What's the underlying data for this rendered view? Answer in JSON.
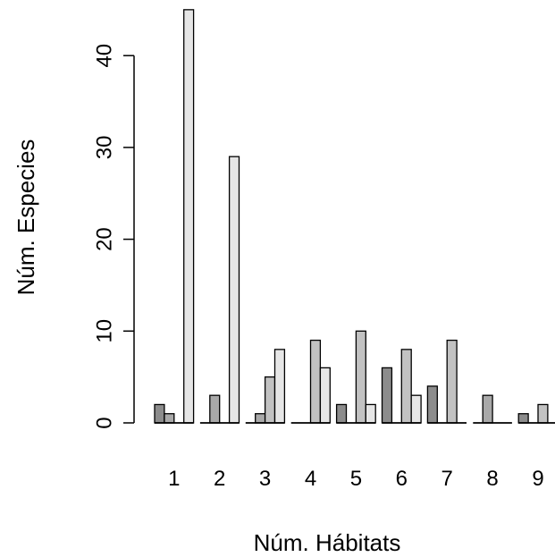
{
  "chart_data": {
    "type": "bar",
    "xlabel": "Núm. Hábitats",
    "ylabel": "Núm. Especies",
    "ylim": [
      0,
      45
    ],
    "yticks": [
      0,
      10,
      20,
      30,
      40
    ],
    "categories": [
      "1",
      "2",
      "3",
      "4",
      "5",
      "6",
      "7",
      "8",
      "9"
    ],
    "series": [
      {
        "values": [
          2,
          0,
          0,
          0,
          2,
          6,
          4,
          0,
          1
        ],
        "color": "#8c8c8c"
      },
      {
        "values": [
          1,
          3,
          1,
          0,
          0,
          0,
          0,
          3,
          0
        ],
        "color": "#a9a9a9"
      },
      {
        "values": [
          0,
          0,
          5,
          9,
          10,
          8,
          9,
          0,
          2
        ],
        "color": "#c2c2c2"
      },
      {
        "values": [
          45,
          29,
          8,
          6,
          2,
          3,
          0,
          0,
          0
        ],
        "color": "#e6e6e6"
      }
    ],
    "grid": false,
    "legend": "none"
  }
}
